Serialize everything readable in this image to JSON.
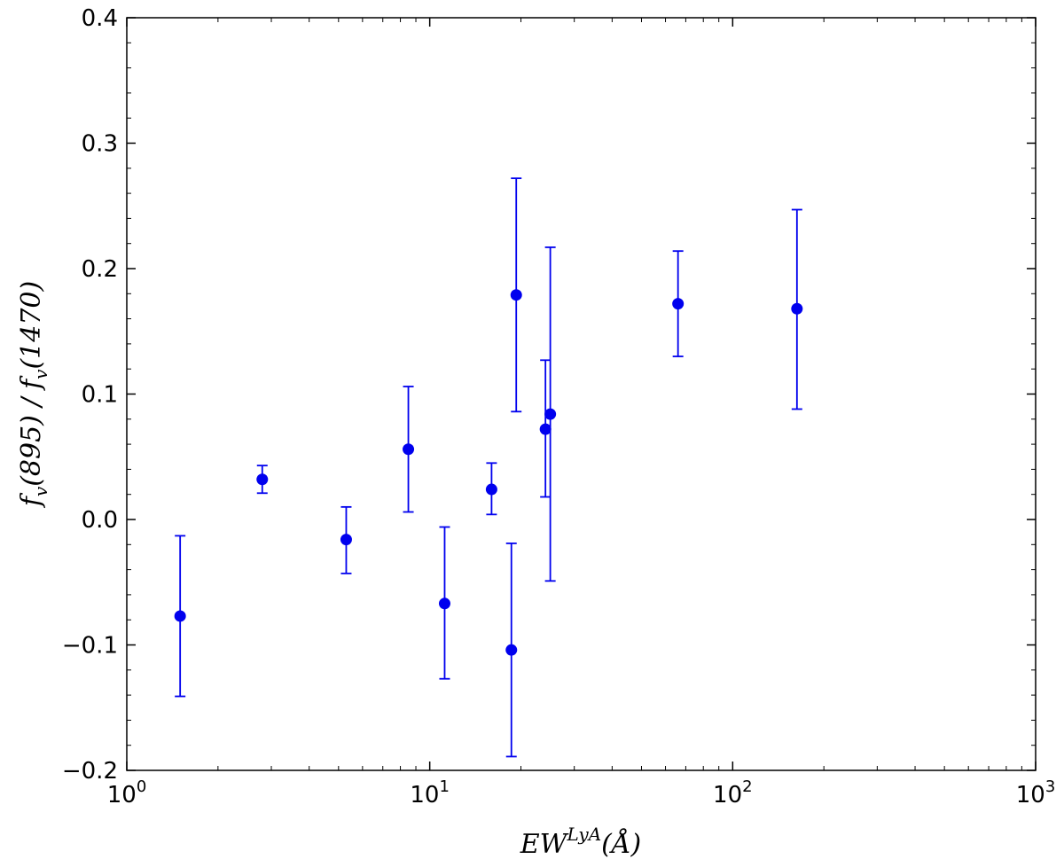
{
  "chart_data": {
    "type": "scatter",
    "title": "",
    "xlabel": "EW^{LyA}(Å)",
    "ylabel": "f_v(895)/f_v(1470)",
    "x_scale": "log",
    "xlim": [
      1,
      1000
    ],
    "ylim": [
      -0.2,
      0.4
    ],
    "grid": false,
    "x_ticks": [
      {
        "value": 1,
        "base": "10",
        "exp": "0"
      },
      {
        "value": 10,
        "base": "10",
        "exp": "1"
      },
      {
        "value": 100,
        "base": "10",
        "exp": "2"
      },
      {
        "value": 1000,
        "base": "10",
        "exp": "3"
      }
    ],
    "y_ticks": [
      {
        "value": -0.2,
        "label": "−0.2"
      },
      {
        "value": -0.1,
        "label": "−0.1"
      },
      {
        "value": 0.0,
        "label": "0.0"
      },
      {
        "value": 0.1,
        "label": "0.1"
      },
      {
        "value": 0.2,
        "label": "0.2"
      },
      {
        "value": 0.3,
        "label": "0.3"
      },
      {
        "value": 0.4,
        "label": "0.4"
      }
    ],
    "series": [
      {
        "color": "#0000ee",
        "points": [
          {
            "x": 1.5,
            "y": -0.077,
            "ylow": -0.141,
            "yhigh": -0.013
          },
          {
            "x": 2.8,
            "y": 0.032,
            "ylow": 0.021,
            "yhigh": 0.043
          },
          {
            "x": 5.3,
            "y": -0.016,
            "ylow": -0.043,
            "yhigh": 0.01
          },
          {
            "x": 8.5,
            "y": 0.056,
            "ylow": 0.006,
            "yhigh": 0.106
          },
          {
            "x": 11.2,
            "y": -0.067,
            "ylow": -0.127,
            "yhigh": -0.006
          },
          {
            "x": 16.0,
            "y": 0.024,
            "ylow": 0.004,
            "yhigh": 0.045
          },
          {
            "x": 18.6,
            "y": -0.104,
            "ylow": -0.189,
            "yhigh": -0.019
          },
          {
            "x": 19.3,
            "y": 0.179,
            "ylow": 0.086,
            "yhigh": 0.272
          },
          {
            "x": 24.1,
            "y": 0.072,
            "ylow": 0.018,
            "yhigh": 0.127
          },
          {
            "x": 25.0,
            "y": 0.084,
            "ylow": -0.049,
            "yhigh": 0.217
          },
          {
            "x": 66.0,
            "y": 0.172,
            "ylow": 0.13,
            "yhigh": 0.214
          },
          {
            "x": 163.0,
            "y": 0.168,
            "ylow": 0.088,
            "yhigh": 0.247
          }
        ]
      }
    ]
  }
}
